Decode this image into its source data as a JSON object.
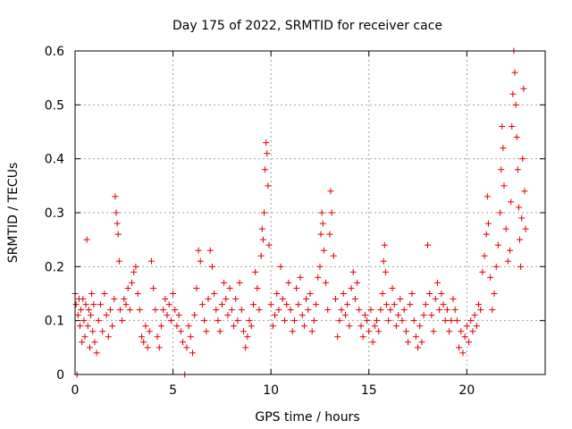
{
  "chart_data": {
    "type": "scatter",
    "title": "Day 175 of 2022, SRMTID for receiver cace",
    "xlabel": "GPS time / hours",
    "ylabel": "SRMTID / TECUs",
    "xlim": [
      0,
      24
    ],
    "ylim": [
      0,
      0.6
    ],
    "x_ticks": [
      0,
      5,
      10,
      15,
      20
    ],
    "x_tick_labels": [
      "0",
      "5",
      "10",
      "15",
      "20"
    ],
    "y_ticks": [
      0,
      0.1,
      0.2,
      0.3,
      0.4,
      0.5,
      0.6
    ],
    "y_tick_labels": [
      "0",
      "0.1",
      "0.2",
      "0.3",
      "0.4",
      "0.5",
      "0.6"
    ],
    "grid": true,
    "marker": "+",
    "color": "#e00000",
    "series": [
      {
        "name": "SRMTID",
        "points": [
          [
            0.0,
            0.15
          ],
          [
            0.05,
            0.13
          ],
          [
            0.1,
            0.0
          ],
          [
            0.15,
            0.11
          ],
          [
            0.2,
            0.14
          ],
          [
            0.25,
            0.09
          ],
          [
            0.3,
            0.12
          ],
          [
            0.35,
            0.06
          ],
          [
            0.4,
            0.14
          ],
          [
            0.45,
            0.1
          ],
          [
            0.5,
            0.07
          ],
          [
            0.55,
            0.13
          ],
          [
            0.6,
            0.25
          ],
          [
            0.65,
            0.09
          ],
          [
            0.7,
            0.12
          ],
          [
            0.75,
            0.05
          ],
          [
            0.8,
            0.11
          ],
          [
            0.85,
            0.15
          ],
          [
            0.9,
            0.08
          ],
          [
            0.95,
            0.13
          ],
          [
            1.0,
            0.06
          ],
          [
            1.1,
            0.04
          ],
          [
            1.2,
            0.1
          ],
          [
            1.3,
            0.13
          ],
          [
            1.4,
            0.08
          ],
          [
            1.5,
            0.15
          ],
          [
            1.6,
            0.11
          ],
          [
            1.7,
            0.07
          ],
          [
            1.8,
            0.12
          ],
          [
            1.9,
            0.09
          ],
          [
            2.0,
            0.14
          ],
          [
            2.05,
            0.33
          ],
          [
            2.1,
            0.3
          ],
          [
            2.15,
            0.28
          ],
          [
            2.2,
            0.26
          ],
          [
            2.25,
            0.21
          ],
          [
            2.3,
            0.12
          ],
          [
            2.4,
            0.1
          ],
          [
            2.5,
            0.14
          ],
          [
            2.6,
            0.13
          ],
          [
            2.7,
            0.16
          ],
          [
            2.8,
            0.12
          ],
          [
            2.9,
            0.17
          ],
          [
            3.0,
            0.19
          ],
          [
            3.1,
            0.2
          ],
          [
            3.2,
            0.15
          ],
          [
            3.3,
            0.12
          ],
          [
            3.4,
            0.07
          ],
          [
            3.5,
            0.06
          ],
          [
            3.6,
            0.09
          ],
          [
            3.7,
            0.05
          ],
          [
            3.8,
            0.08
          ],
          [
            3.9,
            0.21
          ],
          [
            4.0,
            0.16
          ],
          [
            4.1,
            0.12
          ],
          [
            4.2,
            0.07
          ],
          [
            4.3,
            0.05
          ],
          [
            4.4,
            0.09
          ],
          [
            4.5,
            0.12
          ],
          [
            4.6,
            0.14
          ],
          [
            4.7,
            0.11
          ],
          [
            4.8,
            0.13
          ],
          [
            4.9,
            0.1
          ],
          [
            5.0,
            0.15
          ],
          [
            5.1,
            0.12
          ],
          [
            5.2,
            0.09
          ],
          [
            5.3,
            0.11
          ],
          [
            5.4,
            0.08
          ],
          [
            5.5,
            0.06
          ],
          [
            5.6,
            0.0
          ],
          [
            5.7,
            0.05
          ],
          [
            5.8,
            0.09
          ],
          [
            5.9,
            0.07
          ],
          [
            6.0,
            0.04
          ],
          [
            6.1,
            0.11
          ],
          [
            6.2,
            0.16
          ],
          [
            6.3,
            0.23
          ],
          [
            6.4,
            0.21
          ],
          [
            6.5,
            0.13
          ],
          [
            6.6,
            0.1
          ],
          [
            6.7,
            0.08
          ],
          [
            6.8,
            0.14
          ],
          [
            6.9,
            0.23
          ],
          [
            7.0,
            0.2
          ],
          [
            7.1,
            0.15
          ],
          [
            7.2,
            0.12
          ],
          [
            7.3,
            0.1
          ],
          [
            7.4,
            0.08
          ],
          [
            7.5,
            0.13
          ],
          [
            7.6,
            0.17
          ],
          [
            7.7,
            0.14
          ],
          [
            7.8,
            0.11
          ],
          [
            7.9,
            0.16
          ],
          [
            8.0,
            0.12
          ],
          [
            8.1,
            0.09
          ],
          [
            8.2,
            0.14
          ],
          [
            8.3,
            0.1
          ],
          [
            8.4,
            0.17
          ],
          [
            8.5,
            0.12
          ],
          [
            8.6,
            0.08
          ],
          [
            8.7,
            0.05
          ],
          [
            8.8,
            0.07
          ],
          [
            8.9,
            0.1
          ],
          [
            9.0,
            0.09
          ],
          [
            9.1,
            0.13
          ],
          [
            9.2,
            0.19
          ],
          [
            9.3,
            0.16
          ],
          [
            9.4,
            0.12
          ],
          [
            9.5,
            0.22
          ],
          [
            9.55,
            0.27
          ],
          [
            9.6,
            0.25
          ],
          [
            9.65,
            0.3
          ],
          [
            9.7,
            0.38
          ],
          [
            9.75,
            0.43
          ],
          [
            9.8,
            0.41
          ],
          [
            9.85,
            0.35
          ],
          [
            9.9,
            0.24
          ],
          [
            10.0,
            0.13
          ],
          [
            10.1,
            0.09
          ],
          [
            10.2,
            0.11
          ],
          [
            10.3,
            0.15
          ],
          [
            10.4,
            0.12
          ],
          [
            10.5,
            0.2
          ],
          [
            10.6,
            0.14
          ],
          [
            10.7,
            0.1
          ],
          [
            10.8,
            0.13
          ],
          [
            10.9,
            0.17
          ],
          [
            11.0,
            0.12
          ],
          [
            11.1,
            0.08
          ],
          [
            11.2,
            0.1
          ],
          [
            11.3,
            0.16
          ],
          [
            11.4,
            0.13
          ],
          [
            11.5,
            0.18
          ],
          [
            11.6,
            0.11
          ],
          [
            11.7,
            0.09
          ],
          [
            11.8,
            0.14
          ],
          [
            11.9,
            0.12
          ],
          [
            12.0,
            0.15
          ],
          [
            12.1,
            0.08
          ],
          [
            12.2,
            0.1
          ],
          [
            12.3,
            0.13
          ],
          [
            12.4,
            0.18
          ],
          [
            12.5,
            0.2
          ],
          [
            12.55,
            0.26
          ],
          [
            12.6,
            0.3
          ],
          [
            12.65,
            0.28
          ],
          [
            12.7,
            0.23
          ],
          [
            12.8,
            0.17
          ],
          [
            12.9,
            0.12
          ],
          [
            13.0,
            0.26
          ],
          [
            13.05,
            0.34
          ],
          [
            13.1,
            0.3
          ],
          [
            13.2,
            0.22
          ],
          [
            13.3,
            0.14
          ],
          [
            13.4,
            0.07
          ],
          [
            13.5,
            0.1
          ],
          [
            13.6,
            0.12
          ],
          [
            13.7,
            0.15
          ],
          [
            13.8,
            0.11
          ],
          [
            13.9,
            0.13
          ],
          [
            14.0,
            0.09
          ],
          [
            14.1,
            0.16
          ],
          [
            14.2,
            0.19
          ],
          [
            14.3,
            0.14
          ],
          [
            14.4,
            0.17
          ],
          [
            14.5,
            0.12
          ],
          [
            14.6,
            0.09
          ],
          [
            14.7,
            0.07
          ],
          [
            14.8,
            0.11
          ],
          [
            14.9,
            0.1
          ],
          [
            15.0,
            0.08
          ],
          [
            15.1,
            0.12
          ],
          [
            15.2,
            0.06
          ],
          [
            15.3,
            0.09
          ],
          [
            15.4,
            0.1
          ],
          [
            15.5,
            0.08
          ],
          [
            15.6,
            0.12
          ],
          [
            15.7,
            0.15
          ],
          [
            15.75,
            0.21
          ],
          [
            15.8,
            0.24
          ],
          [
            15.85,
            0.19
          ],
          [
            15.9,
            0.13
          ],
          [
            16.0,
            0.1
          ],
          [
            16.1,
            0.12
          ],
          [
            16.2,
            0.16
          ],
          [
            16.3,
            0.13
          ],
          [
            16.4,
            0.09
          ],
          [
            16.5,
            0.11
          ],
          [
            16.6,
            0.14
          ],
          [
            16.7,
            0.1
          ],
          [
            16.8,
            0.12
          ],
          [
            16.9,
            0.08
          ],
          [
            17.0,
            0.06
          ],
          [
            17.1,
            0.13
          ],
          [
            17.2,
            0.15
          ],
          [
            17.3,
            0.1
          ],
          [
            17.4,
            0.07
          ],
          [
            17.5,
            0.05
          ],
          [
            17.6,
            0.09
          ],
          [
            17.7,
            0.06
          ],
          [
            17.8,
            0.11
          ],
          [
            17.9,
            0.13
          ],
          [
            18.0,
            0.24
          ],
          [
            18.1,
            0.15
          ],
          [
            18.2,
            0.11
          ],
          [
            18.3,
            0.08
          ],
          [
            18.4,
            0.14
          ],
          [
            18.5,
            0.17
          ],
          [
            18.6,
            0.12
          ],
          [
            18.7,
            0.15
          ],
          [
            18.8,
            0.13
          ],
          [
            18.9,
            0.1
          ],
          [
            19.0,
            0.12
          ],
          [
            19.1,
            0.08
          ],
          [
            19.2,
            0.1
          ],
          [
            19.3,
            0.14
          ],
          [
            19.4,
            0.12
          ],
          [
            19.5,
            0.1
          ],
          [
            19.6,
            0.05
          ],
          [
            19.7,
            0.08
          ],
          [
            19.8,
            0.04
          ],
          [
            19.9,
            0.07
          ],
          [
            20.0,
            0.09
          ],
          [
            20.1,
            0.06
          ],
          [
            20.2,
            0.1
          ],
          [
            20.3,
            0.08
          ],
          [
            20.4,
            0.11
          ],
          [
            20.5,
            0.09
          ],
          [
            20.6,
            0.13
          ],
          [
            20.7,
            0.12
          ],
          [
            20.8,
            0.19
          ],
          [
            20.9,
            0.22
          ],
          [
            21.0,
            0.26
          ],
          [
            21.05,
            0.33
          ],
          [
            21.1,
            0.28
          ],
          [
            21.2,
            0.18
          ],
          [
            21.3,
            0.12
          ],
          [
            21.4,
            0.15
          ],
          [
            21.5,
            0.2
          ],
          [
            21.6,
            0.24
          ],
          [
            21.7,
            0.3
          ],
          [
            21.75,
            0.38
          ],
          [
            21.8,
            0.46
          ],
          [
            21.85,
            0.42
          ],
          [
            21.9,
            0.35
          ],
          [
            22.0,
            0.27
          ],
          [
            22.1,
            0.21
          ],
          [
            22.2,
            0.23
          ],
          [
            22.25,
            0.32
          ],
          [
            22.3,
            0.46
          ],
          [
            22.35,
            0.52
          ],
          [
            22.4,
            0.6
          ],
          [
            22.45,
            0.56
          ],
          [
            22.5,
            0.5
          ],
          [
            22.55,
            0.44
          ],
          [
            22.6,
            0.38
          ],
          [
            22.65,
            0.31
          ],
          [
            22.7,
            0.25
          ],
          [
            22.75,
            0.2
          ],
          [
            22.8,
            0.29
          ],
          [
            22.85,
            0.4
          ],
          [
            22.9,
            0.53
          ],
          [
            22.95,
            0.34
          ],
          [
            23.0,
            0.27
          ]
        ]
      }
    ]
  }
}
